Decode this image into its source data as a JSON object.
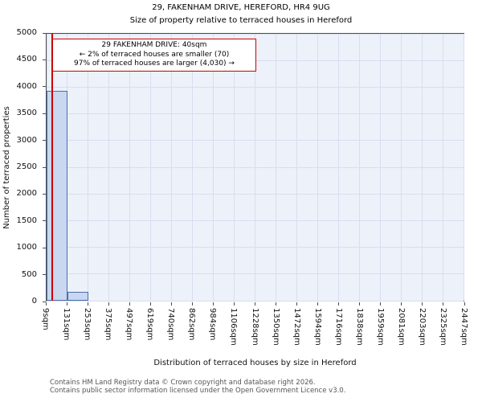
{
  "title": "29, FAKENHAM DRIVE, HEREFORD, HR4 9UG",
  "subtitle": "Size of property relative to terraced houses in Hereford",
  "annotation": {
    "line1": "29 FAKENHAM DRIVE: 40sqm",
    "line2": "← 2% of terraced houses are smaller (70)",
    "line3": "97% of terraced houses are larger (4,030) →"
  },
  "footer": {
    "line1": "Contains HM Land Registry data © Crown copyright and database right 2026.",
    "line2": "Contains public sector information licensed under the Open Government Licence v3.0."
  },
  "chart_data": {
    "type": "bar",
    "title": "29, FAKENHAM DRIVE, HEREFORD, HR4 9UG",
    "subtitle": "Size of property relative to terraced houses in Hereford",
    "xlabel": "Distribution of terraced houses by size in Hereford",
    "ylabel": "Number of terraced properties",
    "ylim": [
      0,
      5000
    ],
    "yticks": [
      0,
      500,
      1000,
      1500,
      2000,
      2500,
      3000,
      3500,
      4000,
      4500,
      5000
    ],
    "bin_edges_sqm": [
      9,
      131,
      253,
      375,
      497,
      619,
      740,
      862,
      984,
      1106,
      1228,
      1350,
      1472,
      1594,
      1716,
      1838,
      1959,
      2081,
      2203,
      2325,
      2447
    ],
    "categories": [
      "9sqm",
      "131sqm",
      "253sqm",
      "375sqm",
      "497sqm",
      "619sqm",
      "740sqm",
      "862sqm",
      "984sqm",
      "1106sqm",
      "1228sqm",
      "1350sqm",
      "1472sqm",
      "1594sqm",
      "1716sqm",
      "1838sqm",
      "1959sqm",
      "2081sqm",
      "2203sqm",
      "2325sqm",
      "2447sqm"
    ],
    "values": [
      3930,
      170,
      0,
      0,
      0,
      0,
      0,
      0,
      0,
      0,
      0,
      0,
      0,
      0,
      0,
      0,
      0,
      0,
      0,
      0
    ],
    "grid": true,
    "legend": "none",
    "marker": {
      "label": "29 FAKENHAM DRIVE",
      "value_sqm": 40,
      "pct_smaller": 2,
      "count_smaller": 70,
      "pct_larger": 97,
      "count_larger": 4030
    },
    "colors": {
      "bar_fill": "#c9d7f0",
      "bar_edge": "#4a6fb0",
      "marker": "#cc0000",
      "plot_bg": "#edf1f9",
      "grid": "#d7def0",
      "annotation_border": "#cc0000"
    }
  }
}
